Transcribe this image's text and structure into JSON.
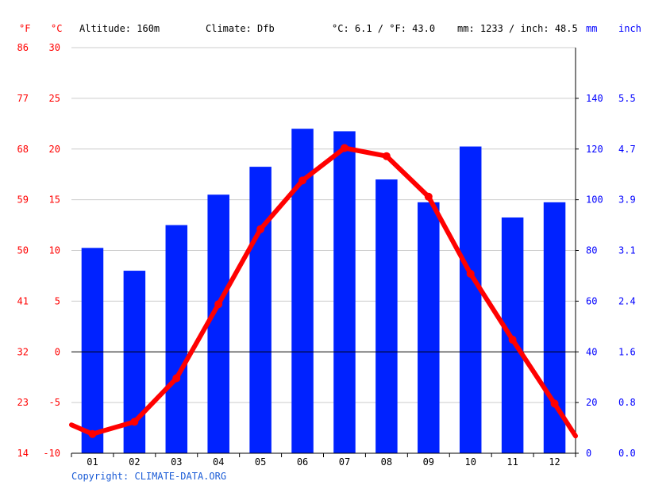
{
  "header": {
    "f_unit": "°F",
    "c_unit": "°C",
    "altitude": "Altitude: 160m",
    "climate": "Climate: Dfb",
    "avg_temp": "°C: 6.1 / °F: 43.0",
    "precip_total": "mm: 1233 / inch: 48.5",
    "mm_unit": "mm",
    "inch_unit": "inch"
  },
  "copyright": "Copyright: CLIMATE-DATA.ORG",
  "colors": {
    "precip": "#0022ff",
    "temp": "#ff0000",
    "grid": "#cccccc"
  },
  "chart_data": {
    "type": "bar+line",
    "categories": [
      "01",
      "02",
      "03",
      "04",
      "05",
      "06",
      "07",
      "08",
      "09",
      "10",
      "11",
      "12"
    ],
    "precipitation_mm": [
      81,
      72,
      90,
      102,
      113,
      128,
      127,
      108,
      99,
      121,
      93,
      99
    ],
    "temperature_c": [
      -8.1,
      -6.9,
      -2.6,
      4.7,
      12.1,
      16.9,
      20.1,
      19.3,
      15.3,
      7.7,
      1.2,
      -5.1
    ],
    "temp_edges_c": [
      -7.2,
      -8.3
    ],
    "y_left_c": {
      "min": -10,
      "max": 30,
      "ticks": [
        "-10",
        "-5",
        "0",
        "5",
        "10",
        "15",
        "20",
        "25",
        "30"
      ]
    },
    "y_left_f": [
      "14",
      "23",
      "32",
      "41",
      "50",
      "59",
      "68",
      "77",
      "86"
    ],
    "y_right_mm": {
      "min": 0,
      "max": 160,
      "ticks": [
        "0",
        "20",
        "40",
        "60",
        "80",
        "100",
        "120",
        "140"
      ]
    },
    "y_right_inch": [
      "0.0",
      "0.8",
      "1.6",
      "2.4",
      "3.1",
      "3.9",
      "4.7",
      "5.5"
    ],
    "grid": true
  }
}
